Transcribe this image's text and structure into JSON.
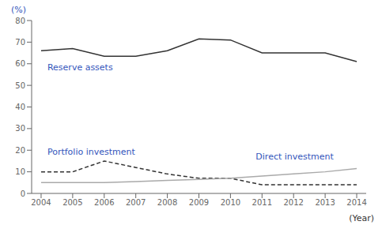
{
  "chart_data": {
    "type": "line",
    "x": [
      2004,
      2005,
      2006,
      2007,
      2008,
      2009,
      2010,
      2011,
      2012,
      2013,
      2014
    ],
    "xlim": [
      2003.7,
      2014.3
    ],
    "xticks": [
      2004,
      2005,
      2006,
      2007,
      2008,
      2009,
      2010,
      2011,
      2012,
      2013,
      2014
    ],
    "ylim": [
      0,
      80
    ],
    "yticks": [
      0,
      10,
      20,
      30,
      40,
      50,
      60,
      70,
      80
    ],
    "y_label": "(%)",
    "x_label": "(Year)",
    "x_label_color": "#333333",
    "grid": false,
    "series": [
      {
        "name": "Reserve assets",
        "color": "#333333",
        "line_style": "solid",
        "values": [
          66,
          67,
          63.5,
          63.5,
          66,
          71.5,
          71,
          65,
          65,
          65,
          61
        ]
      },
      {
        "name": "Portfolio investment",
        "color": "#333333",
        "line_style": "dashed",
        "values": [
          10,
          10,
          15,
          12,
          9,
          7,
          7,
          4,
          4,
          4,
          4
        ]
      },
      {
        "name": "Direct investment",
        "color": "#aaaaaa",
        "line_style": "solid",
        "values": [
          5,
          5,
          5,
          5.5,
          6,
          6.5,
          7,
          8,
          9,
          10,
          11.5
        ]
      }
    ],
    "annotations": [
      {
        "text": "Reserve assets",
        "x": 2004.2,
        "y": 60.5,
        "color": "#3355bb"
      },
      {
        "text": "Portfolio investment",
        "x": 2004.2,
        "y": 21.5,
        "color": "#3355bb"
      },
      {
        "text": "Direct investment",
        "x": 2010.8,
        "y": 19.5,
        "color": "#3355bb"
      }
    ],
    "label_color": "#3355bb"
  }
}
